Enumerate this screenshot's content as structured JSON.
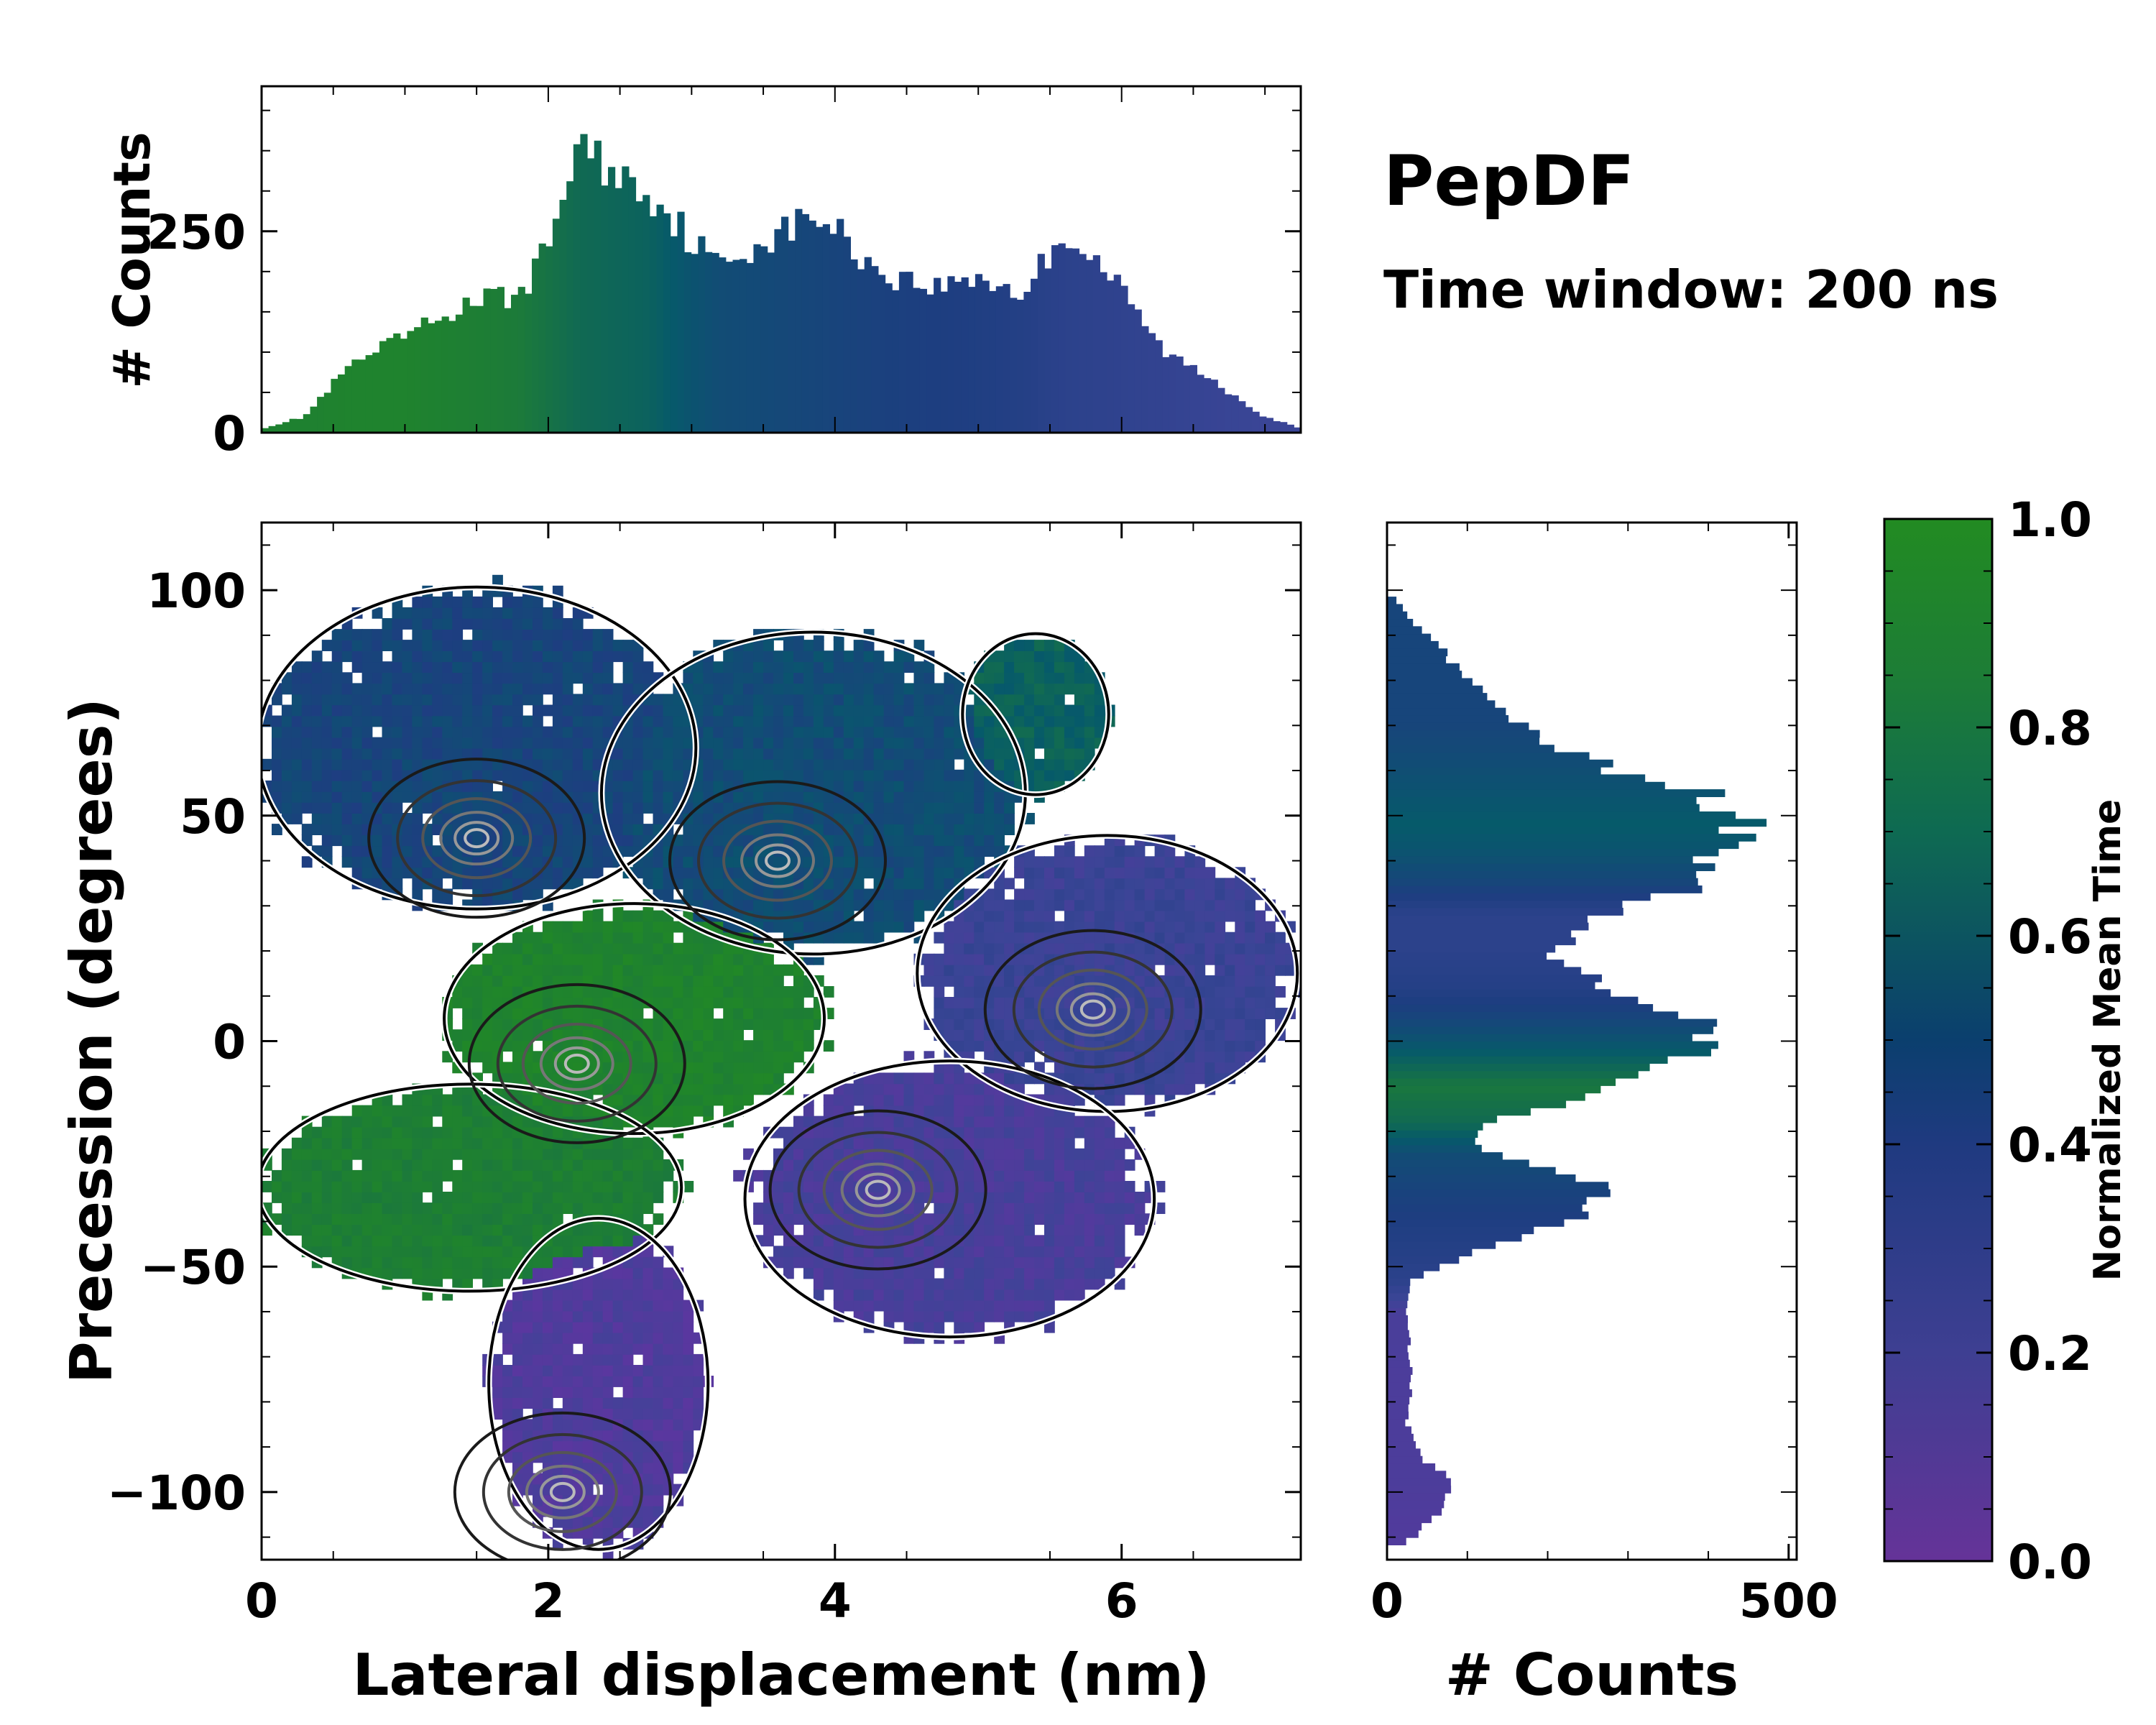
{
  "chart_data": [
    {
      "id": "main",
      "type": "heatmap",
      "title": "",
      "xlabel": "Lateral displacement (nm)",
      "ylabel": "Precession (degrees)",
      "xlim": [
        0,
        7.25
      ],
      "ylim": [
        -115,
        115
      ],
      "xticks": [
        0,
        2,
        4,
        6
      ],
      "yticks": [
        100,
        50,
        0,
        -50,
        -100
      ],
      "ytick_labels": [
        "100",
        "50",
        "0",
        "−50",
        "−100"
      ],
      "clusters": [
        {
          "name": "upper-blue",
          "x": [
            0.0,
            3.0
          ],
          "y": [
            30,
            100
          ],
          "value": 0.45
        },
        {
          "name": "upper-mid-teal",
          "x": [
            2.4,
            5.3
          ],
          "y": [
            20,
            90
          ],
          "value": 0.5
        },
        {
          "name": "top-right-teal",
          "x": [
            4.9,
            5.9
          ],
          "y": [
            55,
            90
          ],
          "value": 0.65
        },
        {
          "name": "center-green",
          "x": [
            1.3,
            3.9
          ],
          "y": [
            -20,
            30
          ],
          "value": 0.9
        },
        {
          "name": "left-green",
          "x": [
            0.0,
            2.9
          ],
          "y": [
            -55,
            -10
          ],
          "value": 0.85
        },
        {
          "name": "right-purple",
          "x": [
            4.6,
            7.2
          ],
          "y": [
            -15,
            45
          ],
          "value": 0.2
        },
        {
          "name": "lower-mid-purple",
          "x": [
            3.4,
            6.2
          ],
          "y": [
            -65,
            -5
          ],
          "value": 0.12
        },
        {
          "name": "bottom-purple",
          "x": [
            1.6,
            3.1
          ],
          "y": [
            -112,
            -40
          ],
          "value": 0.08
        }
      ],
      "density_peaks": [
        {
          "x": 1.5,
          "y": 45
        },
        {
          "x": 3.6,
          "y": 40
        },
        {
          "x": 2.2,
          "y": -5
        },
        {
          "x": 5.8,
          "y": 7
        },
        {
          "x": 4.3,
          "y": -33
        },
        {
          "x": 2.1,
          "y": -100
        }
      ]
    },
    {
      "id": "top-hist",
      "type": "bar",
      "title": "",
      "xlabel": "",
      "ylabel": "# Counts",
      "xlim": [
        0,
        7.25
      ],
      "ylim": [
        0,
        430
      ],
      "yticks": [
        0,
        250
      ],
      "x_knots": [
        0.0,
        0.3,
        0.6,
        1.0,
        1.5,
        1.8,
        2.0,
        2.2,
        2.4,
        2.7,
        3.0,
        3.2,
        3.5,
        3.9,
        4.3,
        4.7,
        5.0,
        5.3,
        5.6,
        5.9,
        6.3,
        6.6,
        7.0,
        7.25
      ],
      "y_knots": [
        5,
        20,
        80,
        120,
        165,
        170,
        230,
        360,
        330,
        300,
        240,
        205,
        240,
        270,
        200,
        180,
        195,
        170,
        250,
        200,
        100,
        70,
        20,
        5
      ],
      "color_knots": [
        0.88,
        0.88,
        0.9,
        0.9,
        0.85,
        0.8,
        0.75,
        0.7,
        0.68,
        0.65,
        0.55,
        0.5,
        0.48,
        0.45,
        0.42,
        0.4,
        0.38,
        0.35,
        0.3,
        0.28,
        0.25,
        0.22,
        0.2,
        0.2
      ]
    },
    {
      "id": "right-hist",
      "type": "bar",
      "orientation": "horizontal",
      "title": "",
      "xlabel": "# Counts",
      "ylabel": "",
      "xlim": [
        0,
        510
      ],
      "ylim": [
        -115,
        115
      ],
      "xticks": [
        0,
        500
      ],
      "y_knots": [
        -112,
        -105,
        -98,
        -92,
        -85,
        -75,
        -60,
        -53,
        -46,
        -38,
        -31,
        -25,
        -18,
        -10,
        0,
        5,
        12,
        20,
        28,
        35,
        42,
        48,
        55,
        62,
        70,
        78,
        86,
        92,
        99
      ],
      "x_knots": [
        20,
        60,
        80,
        40,
        25,
        30,
        25,
        30,
        110,
        250,
        260,
        130,
        110,
        300,
        390,
        370,
        280,
        200,
        280,
        400,
        430,
        460,
        390,
        250,
        170,
        110,
        70,
        40,
        5
      ],
      "color_knots": [
        0.08,
        0.08,
        0.1,
        0.1,
        0.1,
        0.1,
        0.12,
        0.3,
        0.35,
        0.4,
        0.45,
        0.5,
        0.7,
        0.78,
        0.55,
        0.45,
        0.35,
        0.3,
        0.3,
        0.45,
        0.55,
        0.6,
        0.55,
        0.5,
        0.45,
        0.45,
        0.45,
        0.45,
        0.45
      ]
    },
    {
      "id": "colorbar",
      "type": "colorbar",
      "label": "Normalized Mean Time",
      "range": [
        0,
        1
      ],
      "ticks": [
        "0.0",
        "0.2",
        "0.4",
        "0.6",
        "0.8",
        "1.0"
      ]
    }
  ],
  "annotations": {
    "dataset": "PepDF",
    "window": "Time window: 200 ns"
  },
  "colors": {
    "cmap": [
      "#5e35a0",
      "#3a4596",
      "#1d3e80",
      "#065a6a",
      "#1c7a3a",
      "#228b22"
    ]
  }
}
